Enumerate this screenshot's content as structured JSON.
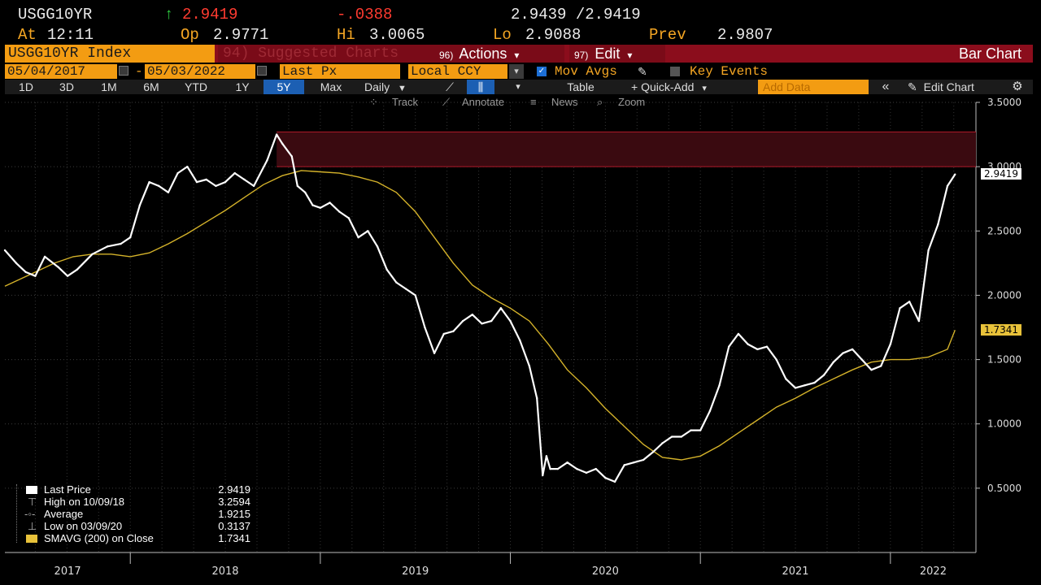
{
  "quote": {
    "ticker": "USGG10YR",
    "last": "2.9419",
    "change": "-.0388",
    "bid_ask": "2.9439 /2.9419",
    "at_label": "At",
    "time": "12:11",
    "open_label": "Op",
    "open": "2.9771",
    "hi_label": "Hi",
    "hi": "3.0065",
    "lo_label": "Lo",
    "lo": "2.9088",
    "prev_label": "Prev",
    "prev": "2.9807",
    "up_arrow": "↑"
  },
  "titlebar": {
    "security": "USGG10YR Index",
    "suggested": "94) Suggested Charts",
    "actions_key": "96)",
    "actions": "Actions",
    "edit_key": "97)",
    "edit": "Edit",
    "chart_type": "Bar Chart",
    "dropdown": "▾"
  },
  "daterow": {
    "start": "05/04/2017",
    "dash": "-",
    "end": "05/03/2022",
    "field": "Last Px",
    "currency": "Local CCY",
    "mov_avgs": "Mov Avgs",
    "key_events": "Key Events"
  },
  "rangerow": {
    "ranges": [
      "1D",
      "3D",
      "1M",
      "6M",
      "YTD",
      "1Y",
      "5Y",
      "Max"
    ],
    "active": "5Y",
    "frequency": "Daily",
    "table": "Table",
    "quick_add": "+ Quick-Add",
    "add_data_placeholder": "Add Data",
    "collapse": "«",
    "edit_chart": "Edit Chart"
  },
  "tools": {
    "track": "Track",
    "annotate": "Annotate",
    "news": "News",
    "zoom": "Zoom"
  },
  "colors": {
    "price": "#ffffff",
    "sma": "#d4b22a",
    "band": "#3a0a10",
    "band_edge": "#b01a2a",
    "accent": "#f39c12",
    "title_bg": "#8b0d1c"
  },
  "legend": {
    "last_price_label": "Last Price",
    "last_price": "2.9419",
    "high_label": "High on 10/09/18",
    "high": "3.2594",
    "avg_label": "Average",
    "avg": "1.9215",
    "low_label": "Low on 03/09/20",
    "low": "0.3137",
    "sma_label": "SMAVG (200)  on Close",
    "sma": "1.7341"
  },
  "chart_data": {
    "type": "line",
    "x_labels": [
      "2017",
      "2018",
      "2019",
      "2020",
      "2021",
      "2022"
    ],
    "y_ticks": [
      "0.5000",
      "1.0000",
      "1.5000",
      "2.0000",
      "2.5000",
      "3.0000",
      "3.5000"
    ],
    "ylim": [
      0.0,
      3.5
    ],
    "xlim": [
      2017.34,
      2022.45
    ],
    "last_value_tag": "2.9419",
    "sma_value_tag": "1.7341",
    "band": [
      3.0,
      3.27
    ],
    "series": [
      {
        "name": "Last Price",
        "x": [
          2017.34,
          2017.4,
          2017.45,
          2017.5,
          2017.55,
          2017.62,
          2017.67,
          2017.72,
          2017.8,
          2017.88,
          2017.95,
          2018.0,
          2018.05,
          2018.1,
          2018.15,
          2018.2,
          2018.25,
          2018.3,
          2018.35,
          2018.4,
          2018.45,
          2018.5,
          2018.55,
          2018.6,
          2018.65,
          2018.72,
          2018.77,
          2018.8,
          2018.85,
          2018.88,
          2018.92,
          2018.96,
          2019.0,
          2019.05,
          2019.1,
          2019.15,
          2019.2,
          2019.25,
          2019.3,
          2019.35,
          2019.4,
          2019.45,
          2019.5,
          2019.55,
          2019.6,
          2019.65,
          2019.7,
          2019.75,
          2019.8,
          2019.85,
          2019.9,
          2019.95,
          2020.0,
          2020.05,
          2020.1,
          2020.14,
          2020.17,
          2020.19,
          2020.21,
          2020.25,
          2020.3,
          2020.35,
          2020.4,
          2020.45,
          2020.5,
          2020.55,
          2020.6,
          2020.65,
          2020.7,
          2020.75,
          2020.8,
          2020.85,
          2020.9,
          2020.95,
          2021.0,
          2021.05,
          2021.1,
          2021.15,
          2021.2,
          2021.25,
          2021.3,
          2021.35,
          2021.4,
          2021.45,
          2021.5,
          2021.55,
          2021.6,
          2021.65,
          2021.7,
          2021.75,
          2021.8,
          2021.85,
          2021.9,
          2021.95,
          2022.0,
          2022.05,
          2022.1,
          2022.15,
          2022.2,
          2022.25,
          2022.3,
          2022.34
        ],
        "values": [
          2.35,
          2.25,
          2.18,
          2.15,
          2.3,
          2.22,
          2.15,
          2.2,
          2.32,
          2.38,
          2.4,
          2.45,
          2.7,
          2.88,
          2.85,
          2.8,
          2.95,
          3.0,
          2.88,
          2.9,
          2.85,
          2.88,
          2.95,
          2.9,
          2.85,
          3.05,
          3.25,
          3.18,
          3.08,
          2.85,
          2.8,
          2.7,
          2.68,
          2.72,
          2.65,
          2.6,
          2.45,
          2.5,
          2.38,
          2.2,
          2.1,
          2.05,
          2.0,
          1.75,
          1.55,
          1.7,
          1.72,
          1.8,
          1.85,
          1.78,
          1.8,
          1.9,
          1.8,
          1.65,
          1.45,
          1.2,
          0.6,
          0.75,
          0.65,
          0.65,
          0.7,
          0.65,
          0.62,
          0.65,
          0.58,
          0.55,
          0.68,
          0.7,
          0.72,
          0.78,
          0.85,
          0.9,
          0.9,
          0.95,
          0.95,
          1.1,
          1.3,
          1.6,
          1.7,
          1.62,
          1.58,
          1.6,
          1.5,
          1.35,
          1.28,
          1.3,
          1.32,
          1.38,
          1.48,
          1.55,
          1.58,
          1.5,
          1.42,
          1.45,
          1.62,
          1.9,
          1.95,
          1.8,
          2.35,
          2.55,
          2.85,
          2.94
        ]
      },
      {
        "name": "SMAVG (200) on Close",
        "x": [
          2017.34,
          2017.5,
          2017.6,
          2017.7,
          2017.8,
          2017.9,
          2018.0,
          2018.1,
          2018.2,
          2018.3,
          2018.4,
          2018.5,
          2018.6,
          2018.7,
          2018.8,
          2018.9,
          2019.0,
          2019.1,
          2019.2,
          2019.3,
          2019.4,
          2019.5,
          2019.6,
          2019.7,
          2019.8,
          2019.9,
          2020.0,
          2020.1,
          2020.2,
          2020.3,
          2020.4,
          2020.5,
          2020.6,
          2020.7,
          2020.8,
          2020.9,
          2021.0,
          2021.1,
          2021.2,
          2021.3,
          2021.4,
          2021.5,
          2021.6,
          2021.7,
          2021.8,
          2021.9,
          2022.0,
          2022.1,
          2022.2,
          2022.3,
          2022.34
        ],
        "values": [
          2.07,
          2.18,
          2.25,
          2.3,
          2.32,
          2.32,
          2.3,
          2.33,
          2.4,
          2.48,
          2.57,
          2.66,
          2.76,
          2.86,
          2.93,
          2.97,
          2.96,
          2.95,
          2.92,
          2.88,
          2.8,
          2.65,
          2.45,
          2.25,
          2.08,
          1.98,
          1.9,
          1.8,
          1.62,
          1.42,
          1.28,
          1.12,
          0.98,
          0.84,
          0.74,
          0.72,
          0.75,
          0.83,
          0.93,
          1.03,
          1.13,
          1.2,
          1.28,
          1.35,
          1.42,
          1.48,
          1.5,
          1.5,
          1.52,
          1.58,
          1.73
        ]
      }
    ]
  }
}
